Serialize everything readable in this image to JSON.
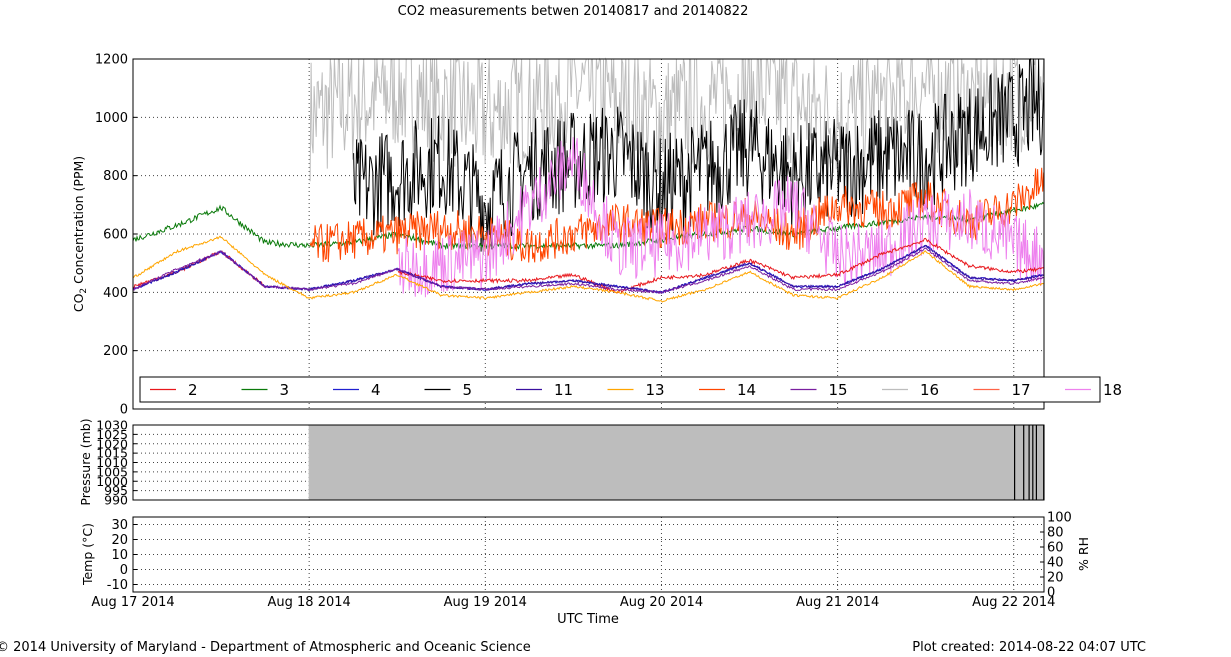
{
  "title": "CO2 measurements betwen 20140817 and 20140822",
  "footer_left": "© 2014 University of Maryland - Department of Atmospheric and Oceanic Science",
  "footer_right": "Plot created: 2014-08-22 04:07 UTC",
  "xlabel": "UTC Time",
  "colors": {
    "2": "#e8171c",
    "3": "#0a7a0a",
    "4": "#2020d0",
    "5": "#000000",
    "11": "#3a10a0",
    "13": "#ffa500",
    "14": "#ff4500",
    "15": "#7a1fa0",
    "16": "#bdbdbd",
    "17": "#ff6347",
    "18": "#ee82ee"
  },
  "chart_data": [
    {
      "type": "line",
      "title": "CO2 measurements betwen 20140817 and 20140822",
      "ylabel": "CO2 Concentration (PPM)",
      "ylim": [
        0,
        1200
      ],
      "yticks": [
        0,
        200,
        400,
        600,
        800,
        1000,
        1200
      ],
      "xlim": [
        "2014-08-17",
        "2014-08-22 04:07"
      ],
      "xticks": [
        "Aug 17 2014",
        "Aug 18 2014",
        "Aug 19 2014",
        "Aug 20 2014",
        "Aug 21 2014",
        "Aug 22 2014"
      ],
      "grid": true,
      "legend_position": "bottom",
      "legend": [
        "2",
        "3",
        "4",
        "5",
        "11",
        "13",
        "14",
        "15",
        "16",
        "17",
        "18"
      ],
      "x_days": [
        0,
        0.25,
        0.5,
        0.75,
        1,
        1.25,
        1.5,
        1.75,
        2,
        2.25,
        2.5,
        2.75,
        3,
        3.25,
        3.5,
        3.75,
        4,
        4.25,
        4.5,
        4.75,
        5,
        5.17
      ],
      "series": [
        {
          "name": "2",
          "values": [
            420,
            470,
            540,
            420,
            null,
            null,
            470,
            440,
            440,
            440,
            460,
            400,
            450,
            460,
            510,
            450,
            460,
            530,
            580,
            490,
            470,
            480
          ]
        },
        {
          "name": "3",
          "values": [
            580,
            630,
            690,
            570,
            560,
            570,
            600,
            560,
            560,
            560,
            560,
            560,
            580,
            600,
            620,
            600,
            620,
            640,
            660,
            650,
            680,
            700
          ]
        },
        {
          "name": "4",
          "values": [
            410,
            470,
            540,
            420,
            410,
            440,
            480,
            420,
            410,
            430,
            440,
            420,
            400,
            450,
            500,
            420,
            420,
            480,
            560,
            450,
            440,
            460
          ]
        },
        {
          "name": "5",
          "values": [
            null,
            null,
            null,
            null,
            null,
            750,
            800,
            850,
            700,
            820,
            850,
            880,
            760,
            820,
            900,
            800,
            820,
            860,
            860,
            950,
            1000,
            1050
          ]
        },
        {
          "name": "11",
          "values": [
            410,
            470,
            540,
            420,
            410,
            440,
            480,
            420,
            410,
            430,
            440,
            420,
            400,
            450,
            500,
            420,
            420,
            480,
            560,
            450,
            440,
            460
          ]
        },
        {
          "name": "13",
          "values": [
            450,
            540,
            590,
            460,
            380,
            400,
            460,
            390,
            380,
            400,
            420,
            400,
            370,
            410,
            470,
            390,
            380,
            450,
            540,
            420,
            410,
            430
          ]
        },
        {
          "name": "14",
          "values": [
            null,
            null,
            null,
            null,
            560,
            580,
            600,
            620,
            600,
            560,
            600,
            640,
            620,
            640,
            660,
            600,
            700,
            680,
            720,
            640,
            700,
            780
          ]
        },
        {
          "name": "15",
          "values": [
            410,
            480,
            540,
            420,
            410,
            430,
            480,
            420,
            410,
            420,
            430,
            410,
            400,
            440,
            490,
            410,
            410,
            470,
            550,
            440,
            430,
            450
          ]
        },
        {
          "name": "16",
          "values": [
            null,
            null,
            null,
            null,
            1000,
            1050,
            1100,
            1050,
            1000,
            1050,
            1100,
            1050,
            1000,
            1050,
            1100,
            1050,
            1000,
            1050,
            1100,
            1050,
            1100,
            1100
          ]
        },
        {
          "name": "17",
          "values": [
            null,
            null,
            null,
            null,
            null,
            null,
            null,
            null,
            null,
            null,
            null,
            null,
            null,
            null,
            null,
            null,
            null,
            null,
            null,
            null,
            null,
            null
          ]
        },
        {
          "name": "18",
          "values": [
            null,
            null,
            null,
            null,
            null,
            null,
            480,
            500,
            520,
            700,
            860,
            550,
            560,
            600,
            640,
            700,
            520,
            540,
            640,
            650,
            560,
            520
          ]
        }
      ]
    },
    {
      "type": "line",
      "ylabel": "Pressure (mb)",
      "ylim": [
        990,
        1030
      ],
      "yticks": [
        990,
        995,
        1000,
        1005,
        1010,
        1015,
        1020,
        1025,
        1030
      ],
      "grid": true,
      "x_days": [
        0,
        1,
        1.5,
        2,
        2.5,
        3,
        3.5,
        4,
        4.5,
        5,
        5.17
      ],
      "series": [
        {
          "name": "16",
          "values": [
            null,
            1030,
            1030,
            1030,
            1030,
            1030,
            1030,
            1030,
            1030,
            1030,
            1030
          ]
        },
        {
          "name": "5",
          "values": [
            null,
            null,
            null,
            1030,
            null,
            1030,
            null,
            1030,
            null,
            1030,
            1030
          ]
        },
        {
          "name": "18",
          "values": [
            null,
            null,
            null,
            null,
            1030,
            null,
            null,
            1030,
            null,
            null,
            null
          ]
        }
      ]
    },
    {
      "type": "line",
      "ylabel": "Temp (°C)",
      "ylim": [
        -15,
        35
      ],
      "yticks": [
        -10,
        0,
        10,
        20,
        30
      ],
      "y2label": "% RH",
      "y2lim": [
        0,
        100
      ],
      "y2ticks": [
        0,
        20,
        40,
        60,
        80,
        100
      ],
      "grid": true,
      "series": []
    }
  ]
}
